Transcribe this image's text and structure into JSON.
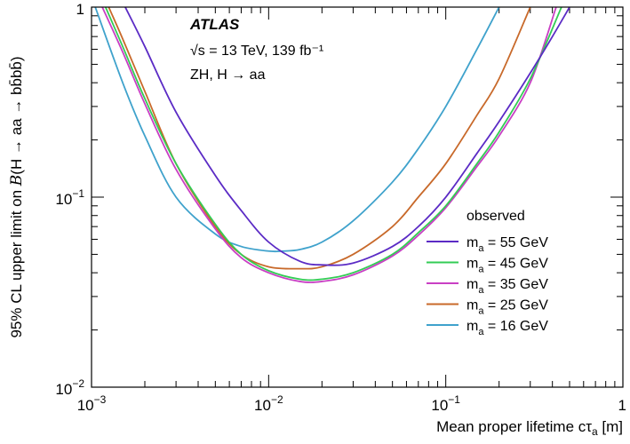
{
  "chart_data": {
    "type": "line",
    "xscale": "log",
    "yscale": "log",
    "xlim": [
      0.001,
      1
    ],
    "ylim": [
      0.01,
      1
    ],
    "xlabel": "Mean proper lifetime cτa [m]",
    "ylabel": "95% CL upper limit on B(H → aa → bb̄bb̄)",
    "x_ticks": [
      {
        "value": 0.001,
        "base": "10",
        "exp": "−3"
      },
      {
        "value": 0.01,
        "base": "10",
        "exp": "−2"
      },
      {
        "value": 0.1,
        "base": "10",
        "exp": "−1"
      },
      {
        "value": 1,
        "base": "1",
        "exp": ""
      }
    ],
    "y_ticks": [
      {
        "value": 0.01,
        "base": "10",
        "exp": "−2"
      },
      {
        "value": 0.1,
        "base": "10",
        "exp": "−1"
      },
      {
        "value": 1,
        "base": "1",
        "exp": ""
      }
    ],
    "annotations": {
      "experiment": "ATLAS",
      "energy_lumi": "√s = 13 TeV, 139 fb⁻¹",
      "process": "ZH, H → aa"
    },
    "legend_title": "observed",
    "legend_position": "right",
    "series": [
      {
        "name": "ma = 55 GeV",
        "mass": "55 GeV",
        "color": "#5b2bc5",
        "x": [
          0.00155,
          0.002,
          0.003,
          0.005,
          0.007,
          0.01,
          0.015,
          0.02,
          0.03,
          0.05,
          0.07,
          0.1,
          0.15,
          0.2,
          0.3,
          0.4,
          0.5
        ],
        "y": [
          1.0,
          0.62,
          0.28,
          0.13,
          0.085,
          0.058,
          0.046,
          0.044,
          0.045,
          0.055,
          0.07,
          0.1,
          0.17,
          0.25,
          0.45,
          0.7,
          1.0
        ]
      },
      {
        "name": "ma = 45 GeV",
        "mass": "45 GeV",
        "color": "#33cc55",
        "x": [
          0.0012,
          0.0015,
          0.002,
          0.003,
          0.005,
          0.007,
          0.01,
          0.015,
          0.02,
          0.03,
          0.05,
          0.07,
          0.1,
          0.15,
          0.2,
          0.3,
          0.45
        ],
        "y": [
          1.0,
          0.62,
          0.33,
          0.15,
          0.072,
          0.05,
          0.041,
          0.037,
          0.037,
          0.04,
          0.05,
          0.065,
          0.09,
          0.15,
          0.22,
          0.42,
          1.0
        ]
      },
      {
        "name": "ma = 35 GeV",
        "mass": "35 GeV",
        "color": "#c93fc4",
        "x": [
          0.00115,
          0.0015,
          0.002,
          0.003,
          0.005,
          0.007,
          0.01,
          0.015,
          0.02,
          0.03,
          0.05,
          0.07,
          0.1,
          0.15,
          0.2,
          0.3,
          0.42
        ],
        "y": [
          1.0,
          0.58,
          0.31,
          0.14,
          0.068,
          0.048,
          0.04,
          0.036,
          0.036,
          0.039,
          0.049,
          0.063,
          0.088,
          0.145,
          0.21,
          0.4,
          1.0
        ]
      },
      {
        "name": "ma = 25 GeV",
        "mass": "25 GeV",
        "color": "#c8692a",
        "x": [
          0.00125,
          0.0015,
          0.002,
          0.003,
          0.005,
          0.007,
          0.01,
          0.015,
          0.02,
          0.03,
          0.05,
          0.07,
          0.1,
          0.15,
          0.2,
          0.3
        ],
        "y": [
          1.0,
          0.68,
          0.36,
          0.15,
          0.07,
          0.05,
          0.043,
          0.042,
          0.043,
          0.05,
          0.07,
          0.1,
          0.15,
          0.27,
          0.42,
          1.0
        ]
      },
      {
        "name": "ma = 16 GeV",
        "mass": "16 GeV",
        "color": "#3fa2cc",
        "x": [
          0.00105,
          0.0015,
          0.002,
          0.003,
          0.005,
          0.007,
          0.01,
          0.012,
          0.015,
          0.02,
          0.03,
          0.05,
          0.07,
          0.1,
          0.15,
          0.2
        ],
        "y": [
          1.0,
          0.4,
          0.21,
          0.1,
          0.064,
          0.055,
          0.052,
          0.052,
          0.053,
          0.058,
          0.075,
          0.12,
          0.18,
          0.3,
          0.6,
          1.0
        ]
      }
    ]
  }
}
